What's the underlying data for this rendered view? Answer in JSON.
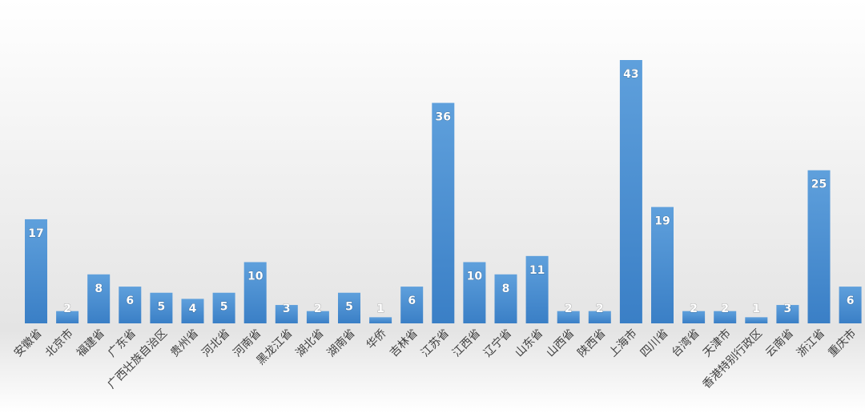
{
  "chart_data": {
    "type": "bar",
    "categories": [
      "安徽省",
      "北京市",
      "福建省",
      "广东省",
      "广西壮族自治区",
      "贵州省",
      "河北省",
      "河南省",
      "黑龙江省",
      "湖北省",
      "湖南省",
      "华侨",
      "吉林省",
      "江苏省",
      "江西省",
      "辽宁省",
      "山东省",
      "山西省",
      "陕西省",
      "上海市",
      "四川省",
      "台湾省",
      "天津市",
      "香港特别行政区",
      "云南省",
      "浙江省",
      "重庆市"
    ],
    "values": [
      17,
      2,
      8,
      6,
      5,
      4,
      5,
      10,
      3,
      2,
      5,
      1,
      6,
      36,
      10,
      8,
      11,
      2,
      2,
      43,
      19,
      2,
      2,
      1,
      3,
      25,
      6
    ],
    "color": "#4a8fd3"
  }
}
